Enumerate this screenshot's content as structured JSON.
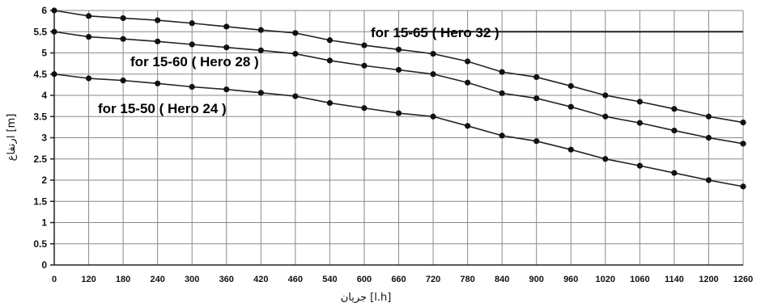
{
  "chart_data": {
    "type": "line",
    "x": [
      0,
      120,
      180,
      240,
      300,
      360,
      420,
      460,
      540,
      600,
      660,
      720,
      780,
      840,
      900,
      960,
      1020,
      1060,
      1140,
      1200,
      1260
    ],
    "x_ticks": [
      "0",
      "120",
      "180",
      "240",
      "300",
      "360",
      "420",
      "460",
      "540",
      "600",
      "660",
      "720",
      "780",
      "840",
      "900",
      "960",
      "1020",
      "1060",
      "1140",
      "1200",
      "1260"
    ],
    "y_ticks": [
      "0",
      "0.5",
      "1",
      "1.5",
      "2",
      "2.5",
      "3",
      "3.5",
      "4",
      "4.5",
      "5",
      "5.5",
      "6"
    ],
    "ylim": [
      0,
      6
    ],
    "xlabel": "جريان [l.h]",
    "ylabel": "ارتفاع [m]",
    "grid": true,
    "series": [
      {
        "name": "for 15-65 ( Hero 32 )",
        "values": [
          6.0,
          5.87,
          5.82,
          5.77,
          5.7,
          5.62,
          5.54,
          5.47,
          5.3,
          5.18,
          5.08,
          4.98,
          4.8,
          4.55,
          4.43,
          4.22,
          4.0,
          3.85,
          3.68,
          3.5,
          3.36
        ]
      },
      {
        "name": "for 15-60 ( Hero 28 )",
        "values": [
          5.5,
          5.38,
          5.33,
          5.27,
          5.2,
          5.13,
          5.06,
          4.98,
          4.82,
          4.7,
          4.6,
          4.5,
          4.3,
          4.05,
          3.93,
          3.73,
          3.5,
          3.35,
          3.17,
          3.0,
          2.86
        ]
      },
      {
        "name": "for 15-50 ( Hero 24 )",
        "values": [
          4.5,
          4.4,
          4.35,
          4.28,
          4.2,
          4.14,
          4.06,
          3.98,
          3.82,
          3.7,
          3.58,
          3.5,
          3.28,
          3.05,
          2.92,
          2.72,
          2.5,
          2.34,
          2.17,
          2.0,
          1.85
        ]
      }
    ],
    "reference_line": {
      "y": 5.5,
      "from_x": 660
    }
  }
}
